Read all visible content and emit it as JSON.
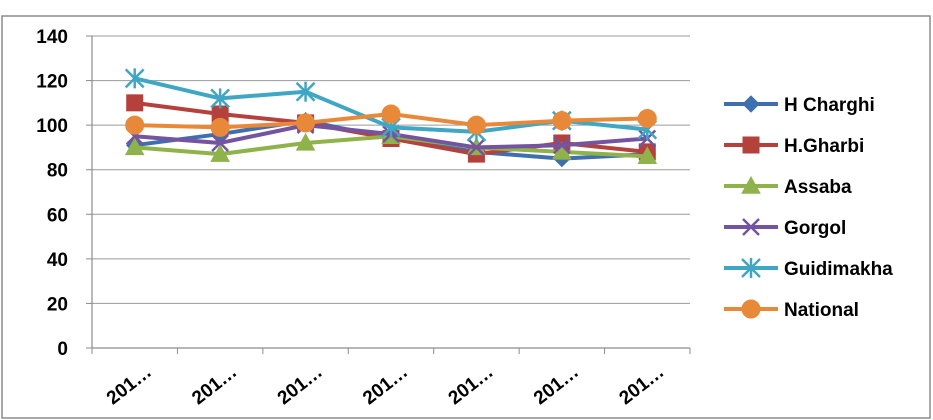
{
  "chart_data": {
    "type": "line",
    "title": "",
    "xlabel": "",
    "ylabel": "",
    "ylim": [
      0,
      140
    ],
    "yticks": [
      0,
      20,
      40,
      60,
      80,
      100,
      120,
      140
    ],
    "categories": [
      "201…",
      "201…",
      "201…",
      "201…",
      "201…",
      "201…",
      "201…"
    ],
    "grid": "horizontal",
    "legend_position": "right",
    "series": [
      {
        "name": "H Charghi",
        "color": "#3F6FAE",
        "marker": "diamond",
        "values": [
          91,
          96,
          102,
          94,
          88,
          85,
          87
        ]
      },
      {
        "name": "H.Gharbi",
        "color": "#B5413D",
        "marker": "square",
        "values": [
          110,
          105,
          101,
          94,
          87,
          92,
          88
        ]
      },
      {
        "name": "Assaba",
        "color": "#8FB34A",
        "marker": "triangle",
        "values": [
          90,
          87,
          92,
          95,
          90,
          88,
          86
        ]
      },
      {
        "name": "Gorgol",
        "color": "#7453A0",
        "marker": "x",
        "values": [
          95,
          92,
          100,
          96,
          90,
          91,
          94
        ]
      },
      {
        "name": "Guidimakha",
        "color": "#3FA6C4",
        "marker": "star",
        "values": [
          121,
          112,
          115,
          99,
          97,
          102,
          98
        ]
      },
      {
        "name": "National",
        "color": "#E8893A",
        "marker": "circle",
        "values": [
          100,
          99,
          101,
          105,
          100,
          102,
          103
        ]
      }
    ]
  }
}
